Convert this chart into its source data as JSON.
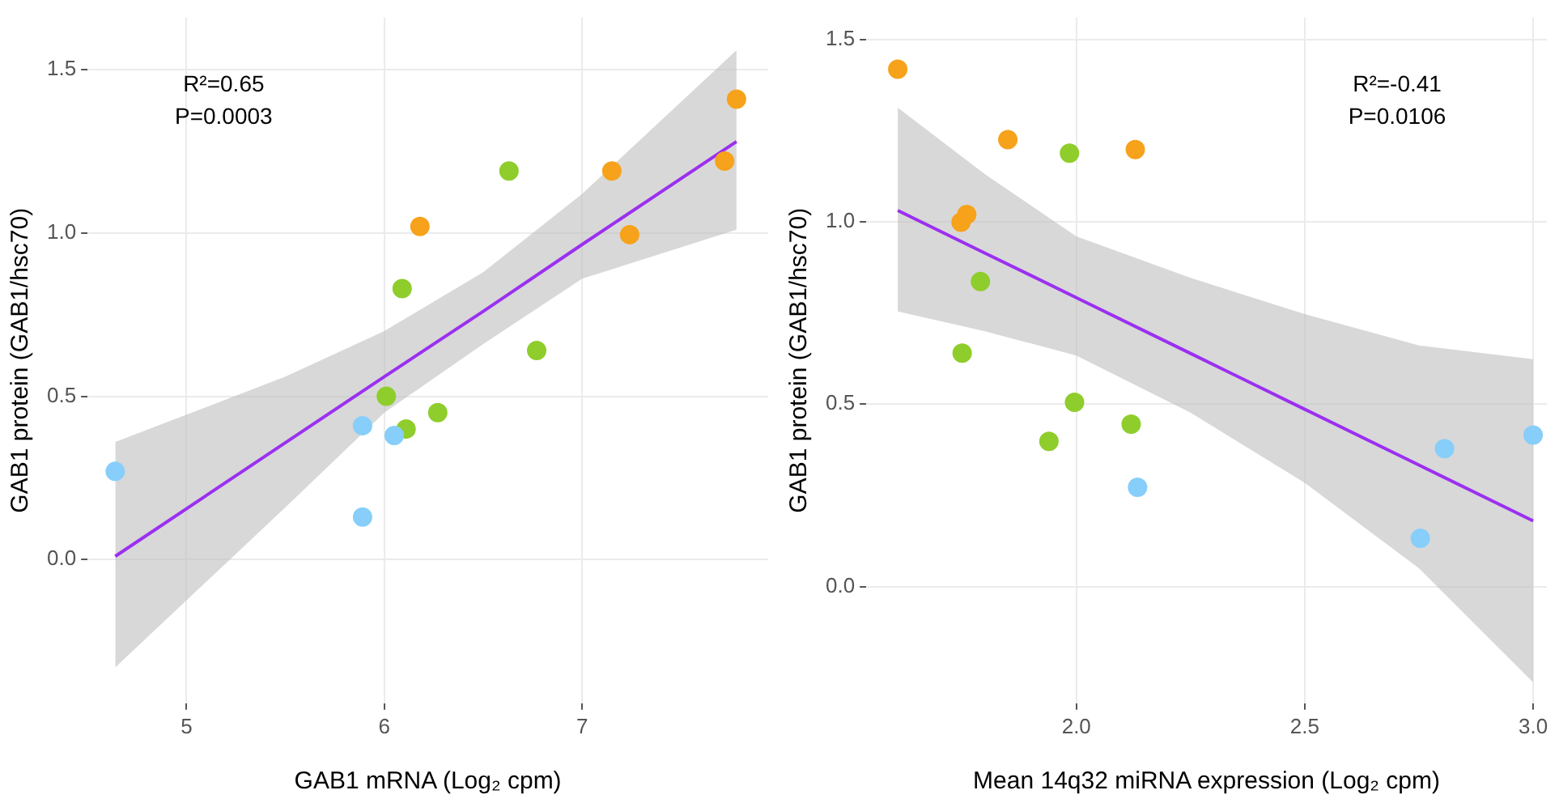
{
  "chart_data": [
    {
      "type": "scatter",
      "xlabel": "GAB1 mRNA (Log₂ cpm)",
      "ylabel": "GAB1 protein (GAB1/hsc70)",
      "annotations": [
        "R²=0.65",
        "P=0.0003"
      ],
      "xlim": [
        4.5,
        7.94
      ],
      "ylim": [
        -0.44,
        1.66
      ],
      "xticks": [
        5,
        6,
        7
      ],
      "yticks": [
        {
          "value": 0,
          "label": "0.0"
        },
        {
          "value": 0.5,
          "label": "0.5"
        },
        {
          "value": 1,
          "label": "1.0"
        },
        {
          "value": 1.5,
          "label": "1.5"
        }
      ],
      "grid": true,
      "legend": false,
      "marker": "circle",
      "series": [
        {
          "type": "line",
          "color": "#9b30f0",
          "marker": "none",
          "x": [
            4.64,
            5.5,
            6.0,
            6.5,
            7.0,
            7.78
          ],
          "values": [
            0.01,
            0.358,
            0.56,
            0.76,
            0.965,
            1.28
          ],
          "lower": [
            -0.33,
            0.16,
            0.45,
            0.66,
            0.86,
            1.01
          ],
          "upper": [
            0.36,
            0.56,
            0.7,
            0.88,
            1.12,
            1.56
          ]
        },
        {
          "color": "#87cefa",
          "x": [
            4.64,
            5.89,
            6.05,
            5.89
          ],
          "values": [
            0.27,
            0.41,
            0.38,
            0.13
          ]
        },
        {
          "color": "#8fcd2c",
          "x": [
            6.01,
            6.11,
            6.27,
            6.09,
            6.77,
            6.63
          ],
          "values": [
            0.5,
            0.4,
            0.45,
            0.83,
            0.64,
            1.19
          ]
        },
        {
          "color": "#f7a21b",
          "x": [
            6.18,
            7.15,
            7.24,
            7.72,
            7.78
          ],
          "values": [
            1.02,
            1.19,
            0.995,
            1.22,
            1.41
          ]
        }
      ]
    },
    {
      "type": "scatter",
      "xlabel": "Mean 14q32 miRNA expression (Log₂ cpm)",
      "ylabel": "GAB1 protein (GAB1/hsc70)",
      "annotations": [
        "R²=-0.41",
        "P=0.0106"
      ],
      "xlim": [
        1.54,
        3.03
      ],
      "ylim": [
        -0.32,
        1.56
      ],
      "xticks": [
        {
          "value": 2,
          "label": "2.0"
        },
        {
          "value": 2.5,
          "label": "2.5"
        },
        {
          "value": 3,
          "label": "3.0"
        }
      ],
      "yticks": [
        {
          "value": 0,
          "label": "0.0"
        },
        {
          "value": 0.5,
          "label": "0.5"
        },
        {
          "value": 1,
          "label": "1.0"
        },
        {
          "value": 1.5,
          "label": "1.5"
        }
      ],
      "grid": true,
      "legend": false,
      "marker": "circle",
      "series": [
        {
          "type": "line",
          "color": "#9b30f0",
          "marker": "none",
          "x": [
            1.609,
            1.8,
            2.0,
            2.25,
            2.5,
            2.75,
            3.0
          ],
          "values": [
            1.031,
            0.914,
            0.792,
            0.639,
            0.486,
            0.333,
            0.18
          ],
          "lower": [
            0.754,
            0.7,
            0.633,
            0.477,
            0.284,
            0.05,
            -0.263
          ],
          "upper": [
            1.313,
            1.13,
            0.96,
            0.846,
            0.747,
            0.661,
            0.623
          ]
        },
        {
          "color": "#f7a21b",
          "x": [
            1.609,
            1.85,
            2.129,
            1.7475,
            1.76
          ],
          "values": [
            1.418,
            1.225,
            1.198,
            0.999,
            1.02
          ]
        },
        {
          "color": "#8fcd2c",
          "x": [
            1.985,
            1.79,
            1.75,
            1.996,
            1.94,
            2.12
          ],
          "values": [
            1.188,
            0.836,
            0.64,
            0.505,
            0.398,
            0.445
          ]
        },
        {
          "color": "#87cefa",
          "x": [
            2.134,
            2.753,
            2.806,
            3.0
          ],
          "values": [
            0.272,
            0.132,
            0.378,
            0.415
          ]
        }
      ]
    }
  ]
}
